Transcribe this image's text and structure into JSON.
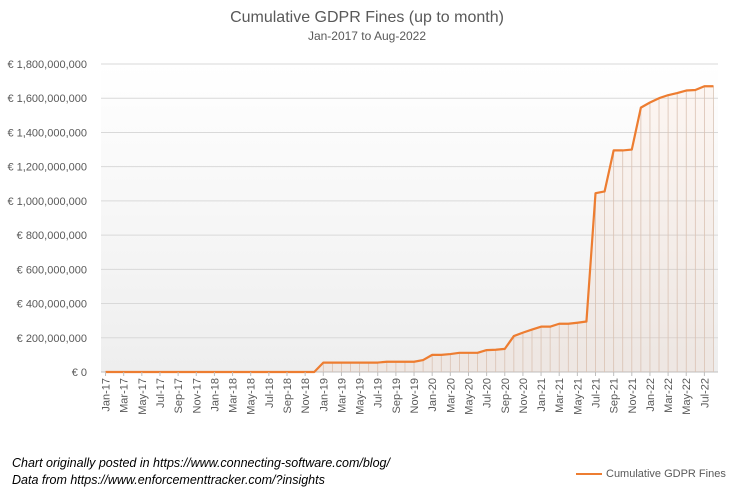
{
  "chart_data": {
    "type": "area",
    "title": "Cumulative GDPR Fines (up to month)",
    "subtitle": "Jan-2017 to Aug-2022",
    "legend": "bottom-right",
    "grid": true,
    "color": "#ED7D31",
    "ylim": [
      0,
      1800000000
    ],
    "yticks": [
      "€ 0",
      "€ 200,000,000",
      "€ 400,000,000",
      "€ 600,000,000",
      "€ 800,000,000",
      "€ 1,000,000,000",
      "€ 1,200,000,000",
      "€ 1,400,000,000",
      "€ 1,600,000,000",
      "€ 1,800,000,000"
    ],
    "categories": [
      "Jan-17",
      "Feb-17",
      "Mar-17",
      "Apr-17",
      "May-17",
      "Jun-17",
      "Jul-17",
      "Aug-17",
      "Sep-17",
      "Oct-17",
      "Nov-17",
      "Dec-17",
      "Jan-18",
      "Feb-18",
      "Mar-18",
      "Apr-18",
      "May-18",
      "Jun-18",
      "Jul-18",
      "Aug-18",
      "Sep-18",
      "Oct-18",
      "Nov-18",
      "Dec-18",
      "Jan-19",
      "Feb-19",
      "Mar-19",
      "Apr-19",
      "May-19",
      "Jun-19",
      "Jul-19",
      "Aug-19",
      "Sep-19",
      "Oct-19",
      "Nov-19",
      "Dec-19",
      "Jan-20",
      "Feb-20",
      "Mar-20",
      "Apr-20",
      "May-20",
      "Jun-20",
      "Jul-20",
      "Aug-20",
      "Sep-20",
      "Oct-20",
      "Nov-20",
      "Dec-20",
      "Jan-21",
      "Feb-21",
      "Mar-21",
      "Apr-21",
      "May-21",
      "Jun-21",
      "Jul-21",
      "Aug-21",
      "Sep-21",
      "Oct-21",
      "Nov-21",
      "Dec-21",
      "Jan-22",
      "Feb-22",
      "Mar-22",
      "Apr-22",
      "May-22",
      "Jun-22",
      "Jul-22",
      "Aug-22"
    ],
    "tick_labels": [
      "Jan-17",
      "Mar-17",
      "May-17",
      "Jul-17",
      "Sep-17",
      "Nov-17",
      "Jan-18",
      "Mar-18",
      "May-18",
      "Jul-18",
      "Sep-18",
      "Nov-18",
      "Jan-19",
      "Mar-19",
      "May-19",
      "Jul-19",
      "Sep-19",
      "Nov-19",
      "Jan-20",
      "Mar-20",
      "May-20",
      "Jul-20",
      "Sep-20",
      "Nov-20",
      "Jan-21",
      "Mar-21",
      "May-21",
      "Jul-21",
      "Sep-21",
      "Nov-21",
      "Jan-22",
      "Mar-22",
      "May-22",
      "Jul-22"
    ],
    "series": [
      {
        "name": "Cumulative GDPR Fines",
        "values": [
          0,
          0,
          0,
          0,
          0,
          0,
          0,
          0,
          0,
          0,
          0,
          0,
          0,
          0,
          0,
          0,
          0,
          0,
          0,
          0,
          0,
          0,
          0,
          0,
          55000000,
          55000000,
          55000000,
          55000000,
          55000000,
          55000000,
          55000000,
          60000000,
          60000000,
          60000000,
          60000000,
          70000000,
          100000000,
          100000000,
          105000000,
          112000000,
          112000000,
          112000000,
          128000000,
          130000000,
          135000000,
          210000000,
          230000000,
          248000000,
          265000000,
          265000000,
          282000000,
          282000000,
          288000000,
          295000000,
          1045000000,
          1055000000,
          1295000000,
          1295000000,
          1300000000,
          1545000000,
          1575000000,
          1600000000,
          1618000000,
          1630000000,
          1645000000,
          1648000000,
          1670000000,
          1670000000
        ]
      }
    ]
  },
  "notes": {
    "line1": "Chart originally posted in https://www.connecting-software.com/blog/",
    "line2": "Data from https://www.enforcementtracker.com/?insights"
  }
}
